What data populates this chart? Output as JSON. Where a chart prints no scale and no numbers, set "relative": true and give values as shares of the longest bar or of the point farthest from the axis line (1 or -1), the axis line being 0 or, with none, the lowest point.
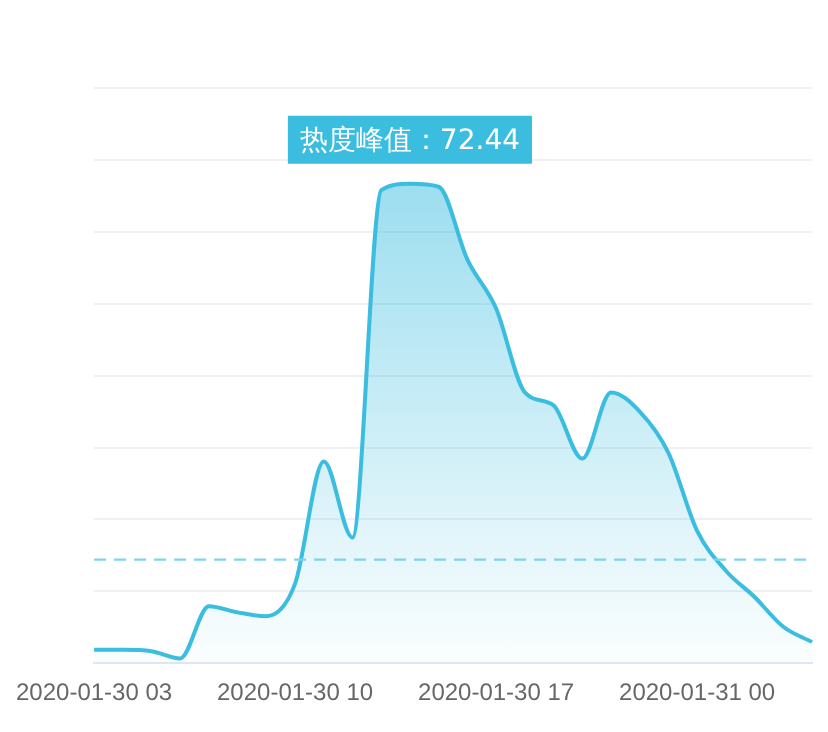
{
  "chart_data": {
    "type": "area",
    "relative": true,
    "categories": [
      "2020-01-30 03",
      null,
      null,
      null,
      null,
      null,
      null,
      "2020-01-30 10",
      null,
      null,
      null,
      null,
      null,
      null,
      "2020-01-30 17",
      null,
      null,
      null,
      null,
      null,
      null,
      "2020-01-31 00",
      null,
      null,
      null,
      null
    ],
    "series": [
      {
        "color": "#3bbde0",
        "values": [
          0.028,
          0.028,
          0.025,
          0.01,
          0.119,
          0.106,
          0.098,
          0.166,
          0.421,
          0.262,
          0.987,
          1,
          0.994,
          0.842,
          0.74,
          0.565,
          0.538,
          0.427,
          0.565,
          0.525,
          0.439,
          0.276,
          0.193,
          0.138,
          0.076,
          0.044
        ]
      }
    ],
    "annotations": [
      "热度峰值：72.44"
    ],
    "ref_lines": [
      {
        "axis": "y",
        "value": 0.216,
        "color": "#7fd3ea",
        "line_style": "dashed"
      }
    ],
    "grid": "y",
    "legend": false,
    "marker": "none",
    "line_style": "solid"
  }
}
